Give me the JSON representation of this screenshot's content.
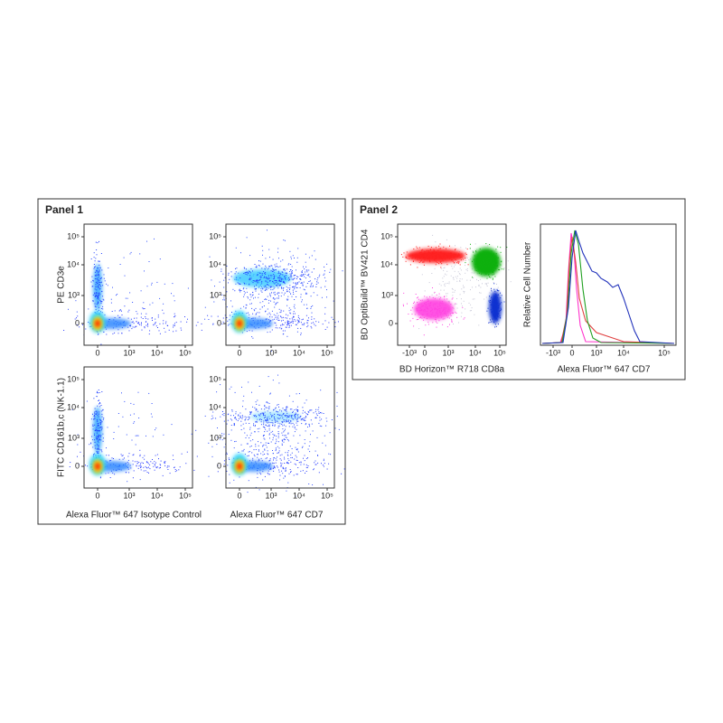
{
  "panel1": {
    "title": "Panel 1",
    "x_ticks": [
      "0",
      "10³",
      "10⁴",
      "10⁵"
    ],
    "y_ticks": [
      "0",
      "10³",
      "10⁴",
      "10⁵"
    ],
    "y_labels": [
      "PE CD3e",
      "FITC CD161b,c (NK-1.1)"
    ],
    "x_labels": [
      "Alexa Fluor™ 647  Isotype Control",
      "Alexa Fluor™ 647  CD7"
    ]
  },
  "panel2": {
    "title": "Panel 2",
    "scatter": {
      "x_label": "BD Horizon™ R718 CD8a",
      "y_label": "BD OptiBuild™ BV421 CD4",
      "x_ticks": [
        "-10³",
        "0",
        "10³",
        "10⁴",
        "10⁵"
      ],
      "y_ticks": [
        "0",
        "10³",
        "10⁴",
        "10⁵"
      ]
    },
    "histogram": {
      "x_label": "Alexa Fluor™ 647 CD7",
      "y_label": "Relative Cell Number",
      "x_ticks": [
        "-10³",
        "0",
        "10³",
        "10⁴",
        "10⁵"
      ]
    }
  }
}
